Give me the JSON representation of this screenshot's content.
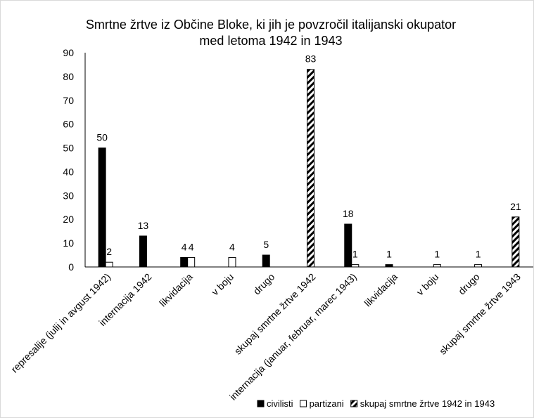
{
  "chart_data": {
    "type": "bar",
    "title_lines": [
      "Smrtne žrtve iz Občine Bloke, ki jih je povzročil italijanski okupator",
      "med letoma 1942 in 1943"
    ],
    "categories": [
      "represalije (julij in avgust 1942)",
      "internacija 1942",
      "likvidacija",
      "v boju",
      "drugo",
      "skupaj smrtne žrtve 1942",
      "internacija (januar, februar, marec 1943)",
      "likvidacija",
      "v boju",
      "drugo",
      "skupaj smrtne žrtve 1943"
    ],
    "series": [
      {
        "name": "civilisti",
        "values": [
          50,
          13,
          4,
          null,
          5,
          null,
          18,
          1,
          null,
          null,
          null
        ],
        "color": "#000000",
        "pattern": "solid"
      },
      {
        "name": "partizani",
        "values": [
          2,
          null,
          4,
          4,
          null,
          null,
          1,
          null,
          1,
          1,
          null
        ],
        "color": "#ffffff",
        "pattern": "outline"
      },
      {
        "name": "skupaj smrtne žrtve 1942 in 1943",
        "values": [
          null,
          null,
          null,
          null,
          null,
          83,
          null,
          null,
          null,
          null,
          21
        ],
        "color": "#000000",
        "pattern": "diagonal-hatch"
      }
    ],
    "data_labels": [
      {
        "category_index": 0,
        "series_index": 0,
        "text": "50"
      },
      {
        "category_index": 0,
        "series_index": 1,
        "text": "2"
      },
      {
        "category_index": 1,
        "series_index": 0,
        "text": "13"
      },
      {
        "category_index": 2,
        "series_index": 0,
        "text": "4"
      },
      {
        "category_index": 2,
        "series_index": 1,
        "text": "4"
      },
      {
        "category_index": 3,
        "series_index": 1,
        "text": "4"
      },
      {
        "category_index": 4,
        "series_index": 0,
        "text": "5"
      },
      {
        "category_index": 5,
        "series_index": 2,
        "text": "83"
      },
      {
        "category_index": 6,
        "series_index": 0,
        "text": "18"
      },
      {
        "category_index": 6,
        "series_index": 1,
        "text": "1"
      },
      {
        "category_index": 7,
        "series_index": 0,
        "text": "1"
      },
      {
        "category_index": 8,
        "series_index": 1,
        "text": "1"
      },
      {
        "category_index": 9,
        "series_index": 1,
        "text": "1"
      },
      {
        "category_index": 10,
        "series_index": 2,
        "text": "21"
      }
    ],
    "yticks": [
      0,
      10,
      20,
      30,
      40,
      50,
      60,
      70,
      80,
      90
    ],
    "ylim": [
      0,
      90
    ],
    "grid": false,
    "legend_position": "bottom-right"
  }
}
